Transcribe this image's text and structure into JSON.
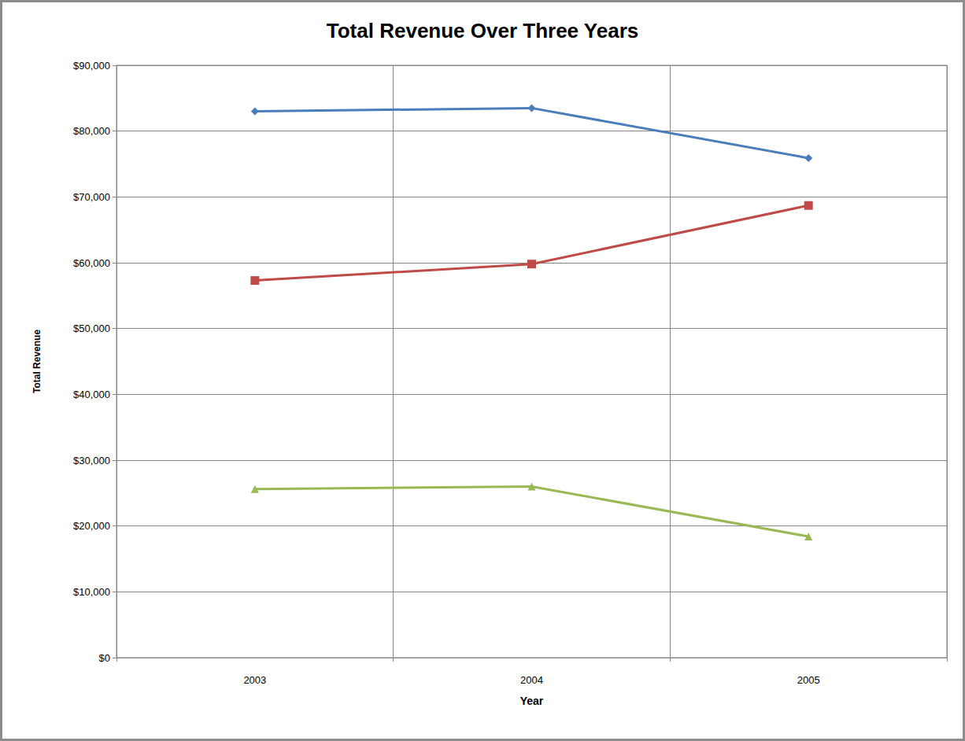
{
  "chart_data": {
    "type": "line",
    "title": "Total Revenue Over Three Years",
    "x_label": "Year",
    "y_label": "Total Revenue",
    "categories": [
      "2003",
      "2004",
      "2005"
    ],
    "series": [
      {
        "color": "#4a7ebb",
        "marker": "diamond",
        "values": [
          83000,
          83500,
          75900
        ]
      },
      {
        "color": "#be4b48",
        "marker": "square",
        "values": [
          57300,
          59800,
          68700
        ]
      },
      {
        "color": "#98b954",
        "marker": "triangle",
        "values": [
          25600,
          26000,
          18400
        ]
      }
    ],
    "ylim": [
      0,
      90000
    ],
    "yticks": [
      {
        "value": 0,
        "label": "$0"
      },
      {
        "value": 10000,
        "label": "$10,000"
      },
      {
        "value": 20000,
        "label": "$20,000"
      },
      {
        "value": 30000,
        "label": "$30,000"
      },
      {
        "value": 40000,
        "label": "$40,000"
      },
      {
        "value": 50000,
        "label": "$50,000"
      },
      {
        "value": 60000,
        "label": "$60,000"
      },
      {
        "value": 70000,
        "label": "$70,000"
      },
      {
        "value": 80000,
        "label": "$80,000"
      },
      {
        "value": 90000,
        "label": "$90,000"
      }
    ],
    "grid": true
  }
}
